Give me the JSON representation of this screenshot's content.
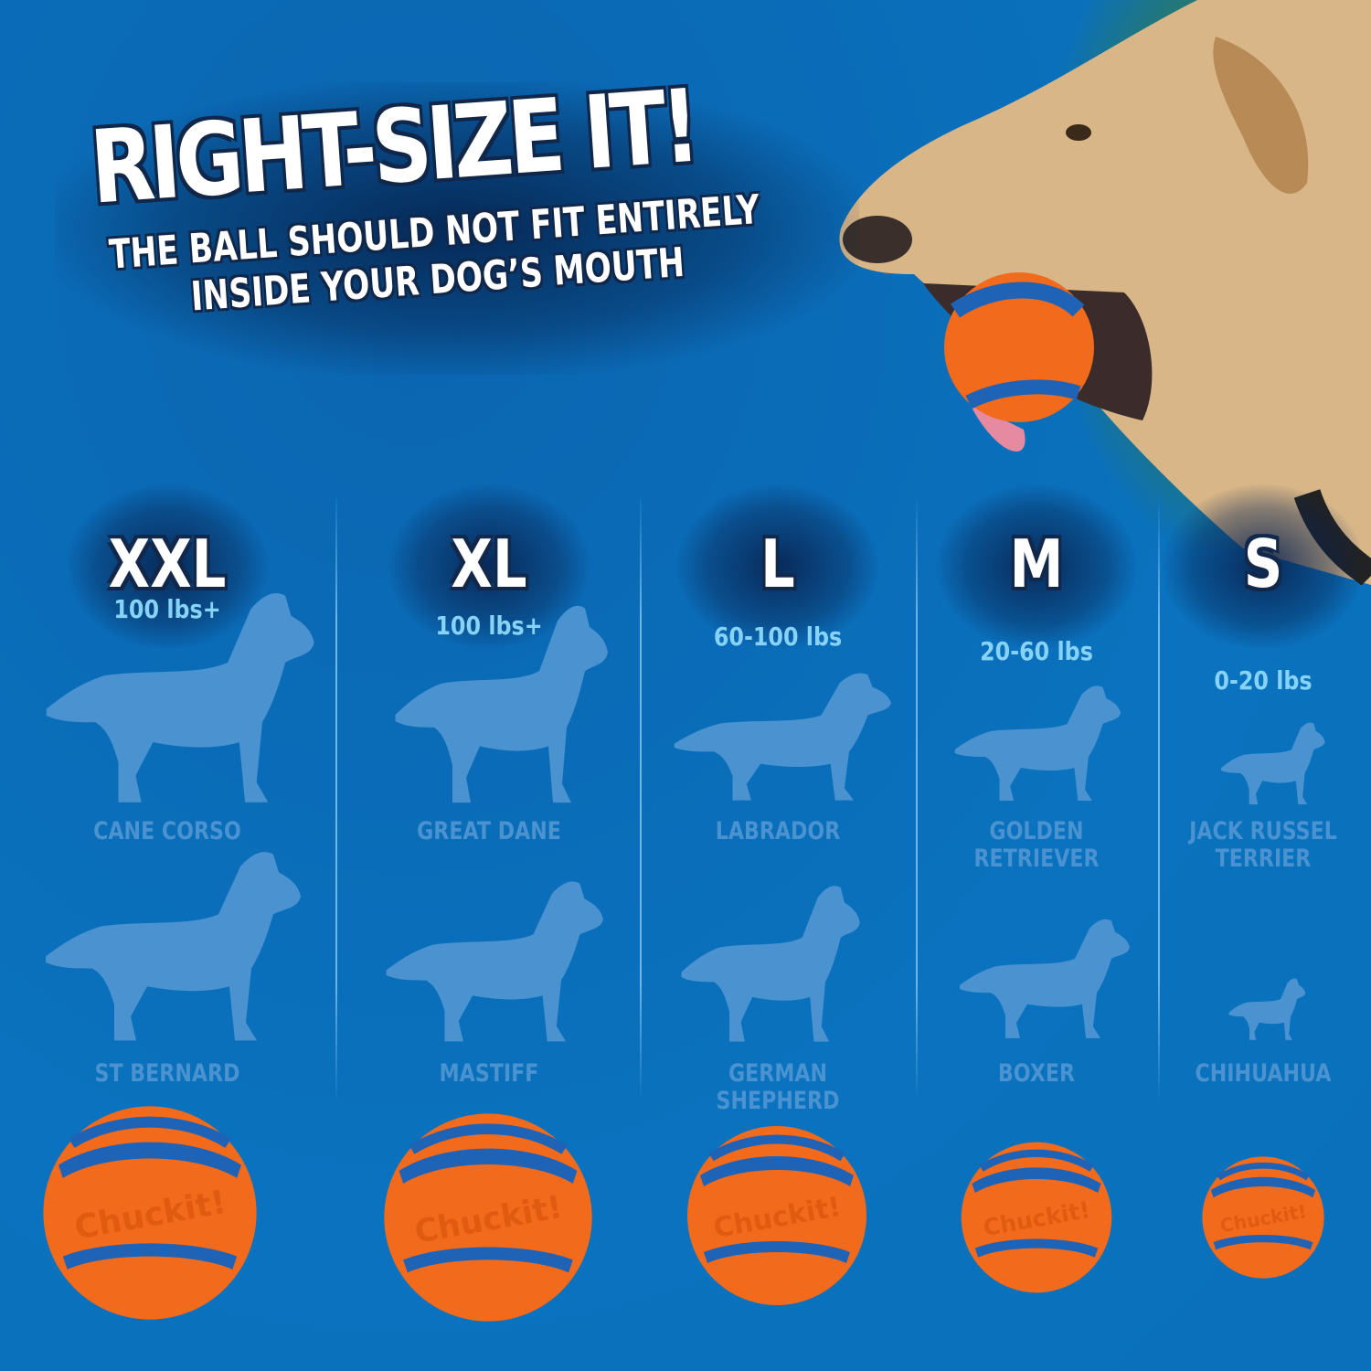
{
  "headline": "RIGHT-SIZE IT!",
  "subheadline": [
    "THE BALL SHOULD NOT FIT ENTIRELY",
    "INSIDE YOUR DOG’S MOUTH"
  ],
  "brand_logo_text": "Chuckit!",
  "colors": {
    "background": "#0a72be",
    "silhouette": "#4a93d0",
    "weight_text": "#86d3f7",
    "ball_orange": "#f26a1b",
    "ball_blue": "#1f63b6"
  },
  "sizes": [
    {
      "size": "XXL",
      "weight": "100 lbs+",
      "breeds": [
        "CANE CORSO",
        "ST BERNARD"
      ]
    },
    {
      "size": "XL",
      "weight": "100 lbs+",
      "breeds": [
        "GREAT DANE",
        "MASTIFF"
      ]
    },
    {
      "size": "L",
      "weight": "60-100 lbs",
      "breeds": [
        "LABRADOR",
        "GERMAN SHEPHERD"
      ]
    },
    {
      "size": "M",
      "weight": "20-60 lbs",
      "breeds": [
        "GOLDEN RETRIEVER",
        "BOXER"
      ]
    },
    {
      "size": "S",
      "weight": "0-20 lbs",
      "breeds": [
        "JACK RUSSEL TERRIER",
        "CHIHUAHUA"
      ]
    }
  ]
}
